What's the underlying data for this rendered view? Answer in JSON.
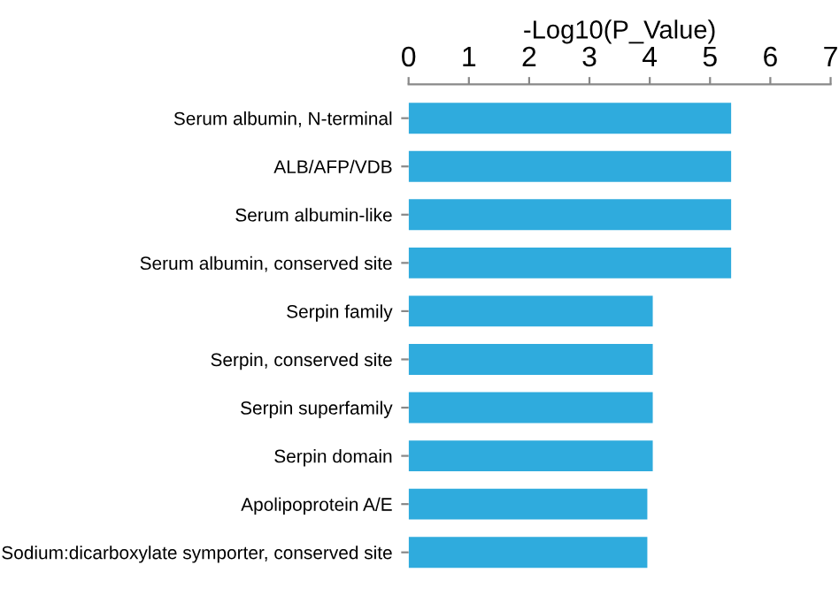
{
  "chart_data": {
    "type": "bar",
    "orientation": "horizontal",
    "xlabel": "-Log10(P_Value)",
    "categories": [
      "Serum albumin, N-terminal",
      "ALB/AFP/VDB",
      "Serum albumin-like",
      "Serum albumin, conserved site",
      "Serpin family",
      "Serpin, conserved site",
      "Serpin superfamily",
      "Serpin domain",
      "Apolipoprotein A/E",
      "Sodium:dicarboxylate symporter, conserved site"
    ],
    "values": [
      5.35,
      5.35,
      5.35,
      5.35,
      4.05,
      4.05,
      4.05,
      4.05,
      3.96,
      3.96
    ],
    "color": "#2fabdd",
    "xlim": [
      0,
      7
    ],
    "xticks": [
      0,
      1,
      2,
      3,
      4,
      5,
      6,
      7
    ],
    "grid": false
  }
}
